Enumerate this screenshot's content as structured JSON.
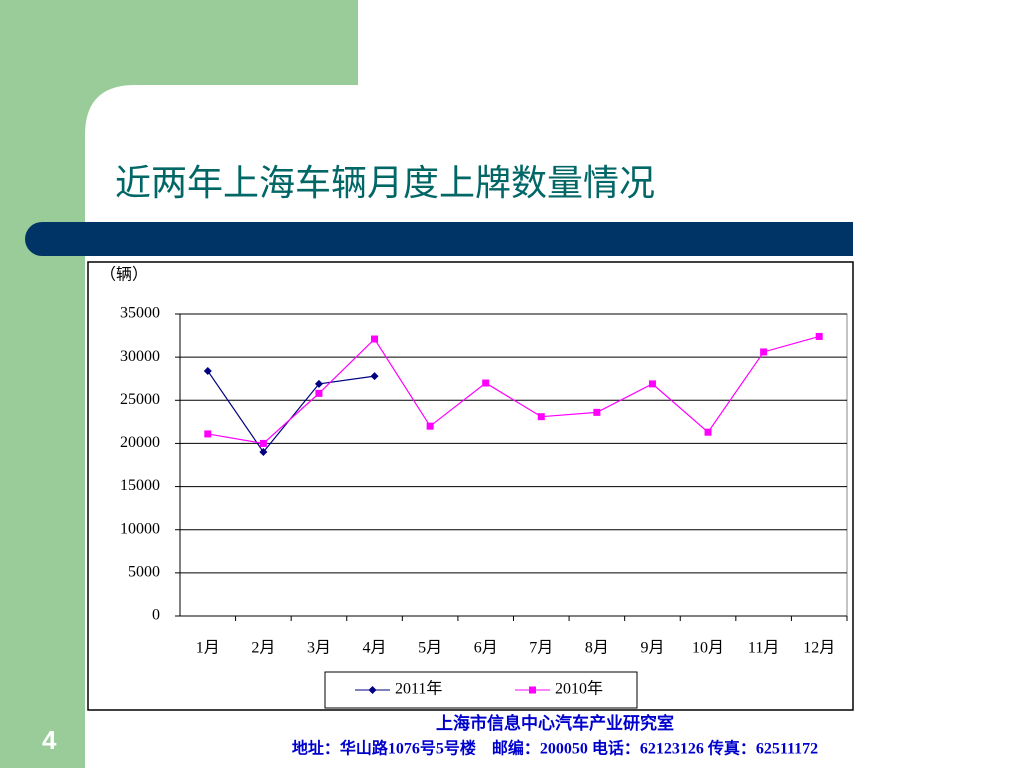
{
  "chart_data": {
    "type": "line",
    "title": "近两年上海车辆月度上牌数量情况",
    "y_label": "（辆）",
    "categories": [
      "1月",
      "2月",
      "3月",
      "4月",
      "5月",
      "6月",
      "7月",
      "8月",
      "9月",
      "10月",
      "11月",
      "12月"
    ],
    "series": [
      {
        "name": "2011年",
        "color": "#000080",
        "marker": "diamond",
        "values": [
          28400,
          19000,
          26900,
          27800,
          null,
          null,
          null,
          null,
          null,
          null,
          null,
          null
        ]
      },
      {
        "name": "2010年",
        "color": "#ff00ff",
        "marker": "square",
        "values": [
          21100,
          20000,
          25800,
          32100,
          22000,
          27000,
          23100,
          23600,
          26900,
          21300,
          30600,
          32400
        ]
      }
    ],
    "ylim": [
      0,
      35000
    ],
    "yticks": [
      0,
      5000,
      10000,
      15000,
      20000,
      25000,
      30000,
      35000
    ],
    "grid": true,
    "legend": "bottom"
  },
  "page_number": "4",
  "footer": {
    "line1": "上海市信息中心汽车产业研究室",
    "line2": "地址：华山路1076号5号楼　邮编：200050  电话：62123126  传真：62511172"
  }
}
